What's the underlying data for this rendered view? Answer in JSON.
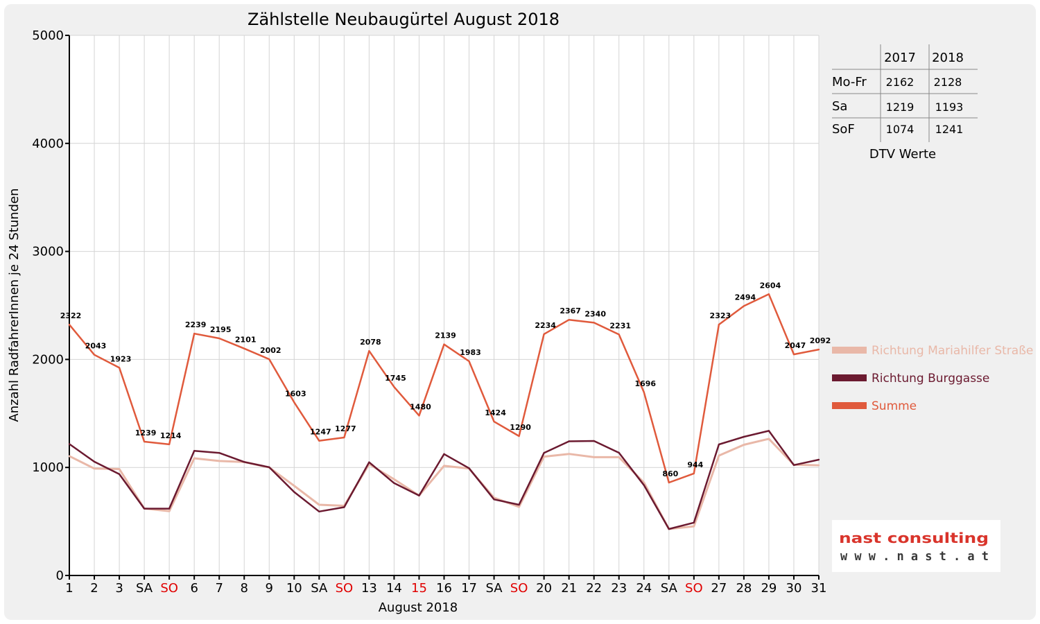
{
  "chart_data": {
    "type": "line",
    "title": "Zählstelle Neubaugürtel August 2018",
    "xlabel": "August 2018",
    "ylabel": "Anzahl RadfahrerInnen je 24 Stunden",
    "ylim": [
      0,
      5000
    ],
    "yticks": [
      "0",
      "1000",
      "2000",
      "3000",
      "4000",
      "5000"
    ],
    "categories": [
      "1",
      "2",
      "3",
      "SA",
      "SO",
      "6",
      "7",
      "8",
      "9",
      "10",
      "SA",
      "SO",
      "13",
      "14",
      "15",
      "16",
      "17",
      "SA",
      "SO",
      "20",
      "21",
      "22",
      "23",
      "24",
      "SA",
      "SO",
      "27",
      "28",
      "29",
      "30",
      "31"
    ],
    "highlight_categories": [
      4,
      11,
      14,
      18,
      25
    ],
    "highlight_color": "#e00000",
    "grid": true,
    "legend_position": "right",
    "series": [
      {
        "name": "Richtung Mariahilfer Straße",
        "color": "#e9b8a8",
        "values": [
          1105,
          990,
          985,
          620,
          595,
          1085,
          1060,
          1050,
          1000,
          830,
          655,
          645,
          1030,
          890,
          740,
          1015,
          990,
          720,
          635,
          1100,
          1125,
          1095,
          1095,
          860,
          430,
          455,
          1110,
          1210,
          1265,
          1025,
          1020
        ]
      },
      {
        "name": "Richtung Burggasse",
        "color": "#6b1a30",
        "values": [
          1217,
          1053,
          938,
          619,
          619,
          1154,
          1135,
          1051,
          1002,
          773,
          592,
          632,
          1048,
          855,
          740,
          1124,
          993,
          704,
          655,
          1134,
          1242,
          1245,
          1136,
          836,
          430,
          489,
          1213,
          1284,
          1339,
          1022,
          1072
        ]
      },
      {
        "name": "Summe",
        "color": "#e05a3c",
        "values": [
          2322,
          2043,
          1923,
          1239,
          1214,
          2239,
          2195,
          2101,
          2002,
          1603,
          1247,
          1277,
          2078,
          1745,
          1480,
          2139,
          1983,
          1424,
          1290,
          2234,
          2367,
          2340,
          2231,
          1696,
          860,
          944,
          2323,
          2494,
          2604,
          2047,
          2092
        ],
        "labels": [
          "2322",
          "2043",
          "1923",
          "1239",
          "1214",
          "2239",
          "2195",
          "2101",
          "2002",
          "1603",
          "1247",
          "1277",
          "2078",
          "1745",
          "1480",
          "2139",
          "1983",
          "1424",
          "1290",
          "2234",
          "2367",
          "2340",
          "2231",
          "1696",
          "860",
          "944",
          "2323",
          "2494",
          "2604",
          "2047",
          "2092"
        ]
      }
    ]
  },
  "dtv_table": {
    "caption": "DTV Werte",
    "columns": [
      "2017",
      "2018"
    ],
    "rows": [
      {
        "label": "Mo-Fr",
        "values": [
          "2162",
          "2128"
        ]
      },
      {
        "label": "Sa",
        "values": [
          "1219",
          "1193"
        ]
      },
      {
        "label": "SoF",
        "values": [
          "1074",
          "1241"
        ]
      }
    ]
  },
  "logo": {
    "name": "nast consulting",
    "url_text": "w w w . n a s t . a t"
  }
}
